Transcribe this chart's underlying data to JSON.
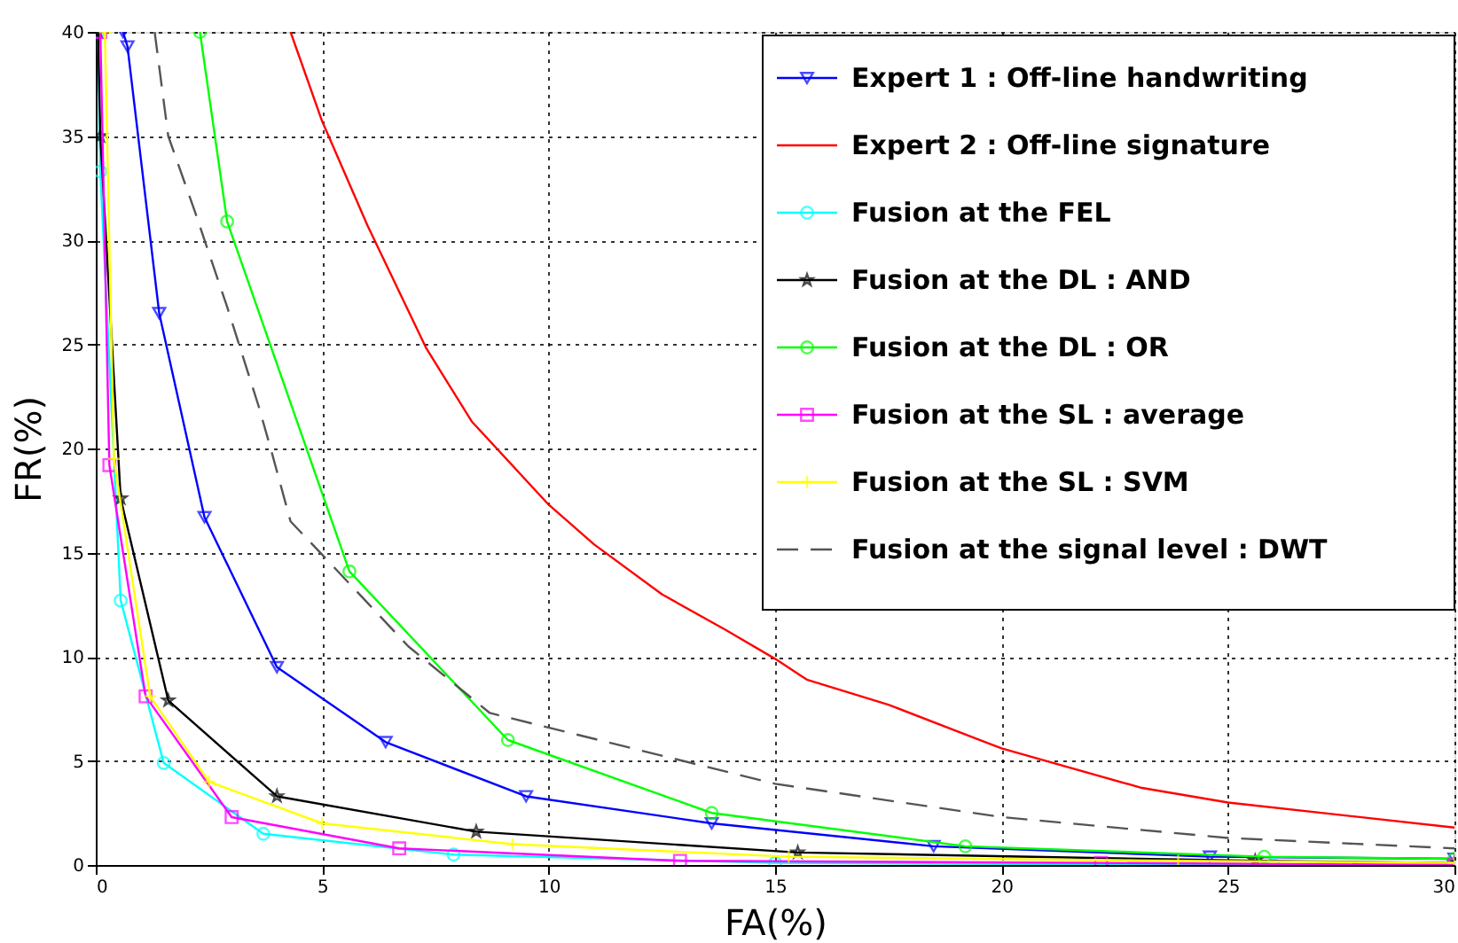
{
  "chart_data": {
    "type": "line",
    "xlabel": "FA(%)",
    "ylabel": "FR(%)",
    "xlim": [
      0,
      30
    ],
    "ylim": [
      0,
      40
    ],
    "xticks": [
      0,
      5,
      10,
      15,
      20,
      25,
      30
    ],
    "yticks": [
      0,
      5,
      10,
      15,
      20,
      25,
      30,
      35,
      40
    ],
    "grid": true,
    "legend": "top right",
    "series": [
      {
        "name": "Expert 1 :  Off-line handwriting",
        "color": "#0000ff",
        "marker": "triangle",
        "line_style": "solid",
        "x": [
          0.6,
          0.7,
          1.4,
          2.4,
          4.0,
          6.4,
          9.5,
          13.6,
          18.5,
          24.6,
          30
        ],
        "values": [
          40,
          39.3,
          26.5,
          16.7,
          9.5,
          5.9,
          3.3,
          2.0,
          0.9,
          0.4,
          0.3
        ]
      },
      {
        "name": "Expert 2 :  Off-line signature",
        "color": "#ff0000",
        "marker": "none",
        "line_style": "solid",
        "x": [
          4.3,
          5.0,
          6.0,
          7.3,
          8.3,
          10.0,
          11.0,
          12.5,
          13.9,
          15.0,
          15.7,
          17.5,
          19.4,
          20.0,
          23.1,
          25.0,
          30.0
        ],
        "values": [
          40,
          35.7,
          30.7,
          24.8,
          21.3,
          17.3,
          15.4,
          13.0,
          11.3,
          9.9,
          8.9,
          7.7,
          6.1,
          5.6,
          3.7,
          3.0,
          1.8
        ]
      },
      {
        "name": "Fusion at the FEL",
        "color": "#00ffff",
        "marker": "circle",
        "line_style": "solid",
        "x": [
          0.05,
          0.1,
          0.55,
          1.5,
          3.7,
          7.9,
          15.0,
          26.0,
          30
        ],
        "values": [
          40,
          33.3,
          12.7,
          4.9,
          1.5,
          0.5,
          0.1,
          0,
          0
        ]
      },
      {
        "name": "Fusion at the DL : AND",
        "color": "#000000",
        "marker": "star",
        "line_style": "solid",
        "x": [
          0.05,
          0.1,
          0.55,
          1.6,
          4.0,
          8.4,
          15.5,
          25.6,
          30
        ],
        "values": [
          40,
          35,
          17.6,
          7.9,
          3.3,
          1.6,
          0.6,
          0.2,
          0.1
        ]
      },
      {
        "name": "Fusion at the DL : OR",
        "color": "#00ff00",
        "marker": "circle",
        "line_style": "solid",
        "x": [
          2.3,
          2.9,
          5.6,
          9.1,
          13.6,
          19.2,
          25.8,
          30
        ],
        "values": [
          40,
          30.9,
          14.1,
          6.0,
          2.5,
          0.9,
          0.4,
          0.3
        ]
      },
      {
        "name": "Fusion at the SL : average",
        "color": "#ff00ff",
        "marker": "square",
        "line_style": "solid",
        "x": [
          0.1,
          0.3,
          1.1,
          3.0,
          6.7,
          12.9,
          22.2,
          30
        ],
        "values": [
          40,
          19.2,
          8.1,
          2.3,
          0.8,
          0.2,
          0.1,
          0
        ]
      },
      {
        "name": "Fusion at the SL : SVM",
        "color": "#ffff00",
        "marker": "cross",
        "line_style": "solid",
        "x": [
          0.2,
          0.4,
          1.2,
          2.5,
          5.0,
          9.2,
          15.3,
          23.9,
          30
        ],
        "values": [
          40,
          19.5,
          8.1,
          4.0,
          2.0,
          1.0,
          0.4,
          0.2,
          0.1
        ]
      },
      {
        "name": "Fusion at the signal level : DWT",
        "color": "#555555",
        "marker": "none",
        "line_style": "dashed",
        "x": [
          1.3,
          1.6,
          2.2,
          2.9,
          3.6,
          3.9,
          4.3,
          5.0,
          6.9,
          8.7,
          15.0,
          20.0,
          25.0,
          30.0
        ],
        "values": [
          40,
          35,
          31.3,
          26.8,
          22,
          19.7,
          16.5,
          14.9,
          10.5,
          7.3,
          3.9,
          2.3,
          1.3,
          0.8
        ]
      }
    ]
  }
}
